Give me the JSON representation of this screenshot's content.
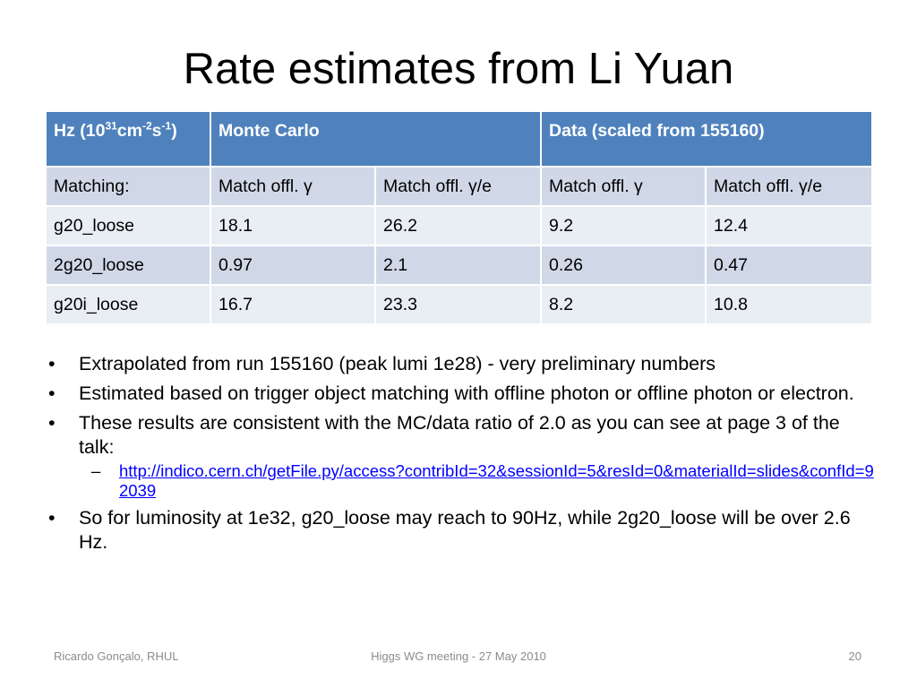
{
  "slide": {
    "title": "Rate estimates from Li Yuan"
  },
  "table": {
    "header": {
      "unit_prefix": "Hz (10",
      "unit_exp1": "31",
      "unit_mid": "cm",
      "unit_exp2": "-2",
      "unit_s": "s",
      "unit_exp3": "-1",
      "unit_suffix": ")",
      "group_mc": "Monte Carlo",
      "group_data": "Data (scaled from 155160)"
    },
    "rows": [
      {
        "label": "Matching:",
        "c1": "Match offl. γ",
        "c2": "Match offl. γ/e",
        "c3": "Match offl. γ",
        "c4": "Match offl. γ/e"
      },
      {
        "label": "g20_loose",
        "c1": "18.1",
        "c2": "26.2",
        "c3": "9.2",
        "c4": "12.4"
      },
      {
        "label": "2g20_loose",
        "c1": "0.97",
        "c2": "2.1",
        "c3": "0.26",
        "c4": "0.47"
      },
      {
        "label": "g20i_loose",
        "c1": "16.7",
        "c2": "23.3",
        "c3": "8.2",
        "c4": "10.8"
      }
    ]
  },
  "bullets": {
    "symbol": "•",
    "dash": "–",
    "b1": "Extrapolated from run 155160 (peak lumi 1e28)  - very preliminary numbers",
    "b2": "Estimated based on trigger object matching  with  offline photon or offline photon or electron.",
    "b3": "These results are consistent with the MC/data ratio of 2.0 as you can see at page 3 of  the talk:",
    "link": "http://indico.cern.ch/getFile.py/access?contribId=32&sessionId=5&resId=0&materialId=slides&confId=92039",
    "b4": "So for luminosity  at 1e32,   g20_loose may reach to 90Hz,  while 2g20_loose will be over 2.6 Hz."
  },
  "footer": {
    "author": "Ricardo Gonçalo, RHUL",
    "meeting": "Higgs WG meeting - 27 May 2010",
    "page_number": "20"
  },
  "colors": {
    "header_blue": "#4f81bd",
    "row_dark": "#d0d8e8",
    "row_light": "#e9edf4",
    "link": "#0000ff"
  }
}
